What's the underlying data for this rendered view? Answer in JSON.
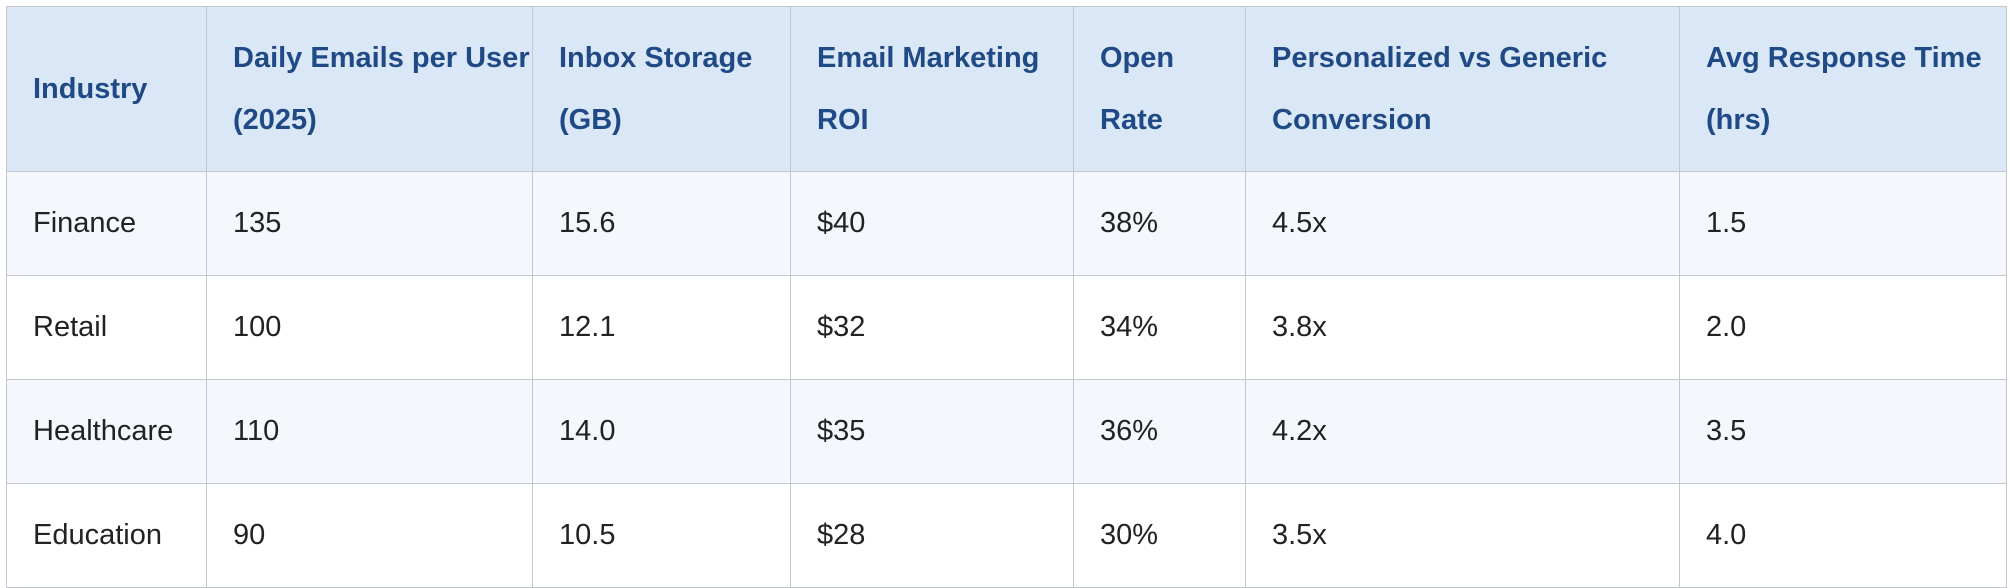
{
  "table": {
    "headers": [
      "Industry",
      "Daily Emails per User (2025)",
      "Inbox Storage (GB)",
      "Email Marketing ROI",
      "Open Rate",
      "Personalized vs Generic Conversion",
      "Avg Response Time (hrs)"
    ],
    "rows": [
      [
        "Finance",
        "135",
        "15.6",
        "$40",
        "38%",
        "4.5x",
        "1.5"
      ],
      [
        "Retail",
        "100",
        "12.1",
        "$32",
        "34%",
        "3.8x",
        "2.0"
      ],
      [
        "Healthcare",
        "110",
        "14.0",
        "$35",
        "36%",
        "4.2x",
        "3.5"
      ],
      [
        "Education",
        "90",
        "10.5",
        "$28",
        "30%",
        "3.5x",
        "4.0"
      ]
    ]
  },
  "colors": {
    "header_background": "#dae7f7",
    "header_text": "#1f4a85",
    "row_alt_background": "#f4f8fd",
    "border": "#c4c7cc"
  }
}
